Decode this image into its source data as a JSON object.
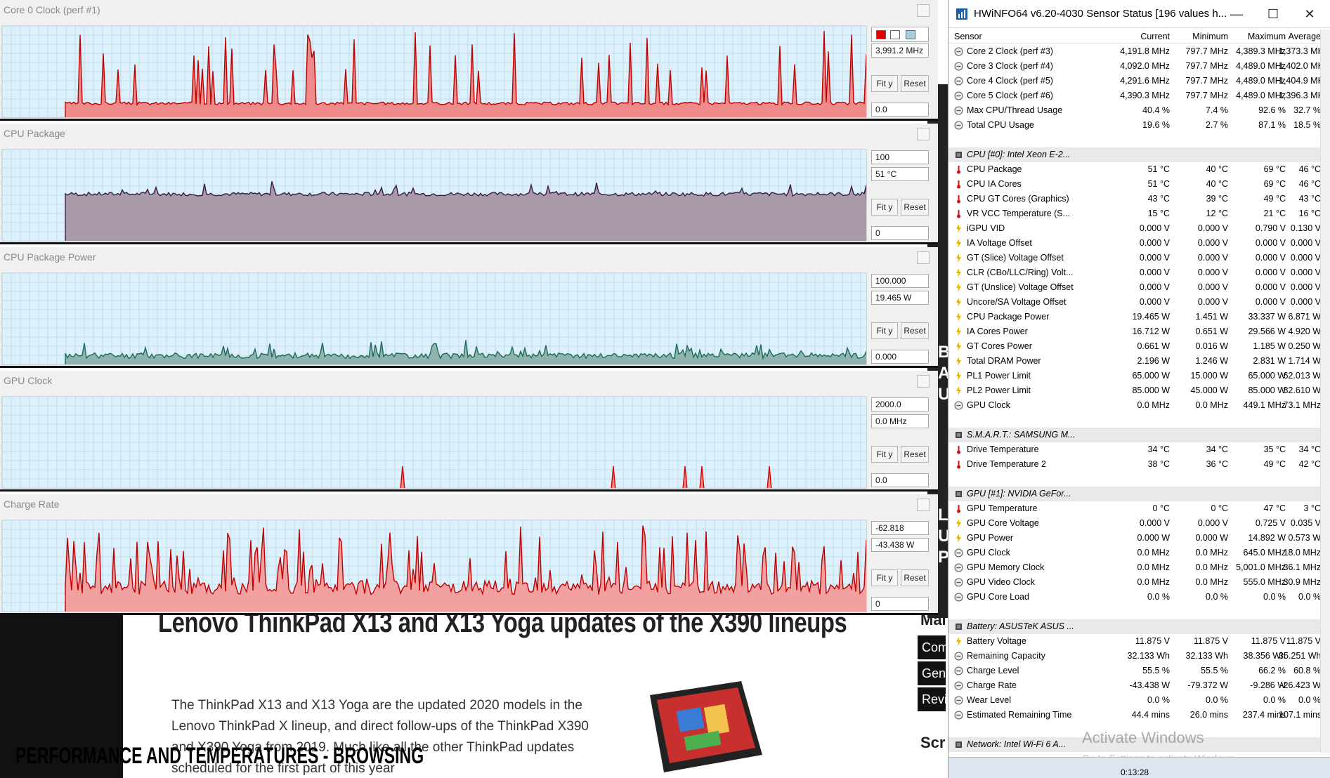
{
  "webpage": {
    "article_title": "Lenovo ThinkPad X13 and X13 Yoga updates of the X390 lineups",
    "article_body": "The ThinkPad X13 and X13 Yoga are the updated 2020 models in the Lenovo ThinkPad X lineup, and direct follow-ups of the ThinkPad X390 and X390 Yoga from 2019. Much like all the other ThinkPad updates scheduled for the first part of this year",
    "overlay_title": "PERFORMANCE AND TEMPERATURES - BROWSING",
    "sidebar_letters": [
      "B",
      "A",
      "U",
      "L",
      "U",
      "P"
    ],
    "sidebar_head": "Mai",
    "sidebar_buttons": [
      "Com",
      "Gen",
      "Revi"
    ],
    "sidebar_head2": "Scr"
  },
  "graphs": [
    {
      "title": "Core 0 Clock (perf #1)",
      "max_value": "",
      "current_value": "3,991.2 MHz",
      "min_value": "0.0",
      "fit_label": "Fit y",
      "reset_label": "Reset",
      "has_colors": true,
      "color": "#ee8a8a",
      "line_color": "#c00000",
      "style": "spikes",
      "baseline": 0.15,
      "seed": 3
    },
    {
      "title": "CPU Package",
      "max_value": "100",
      "current_value": "51 °C",
      "min_value": "0",
      "fit_label": "Fit y",
      "reset_label": "Reset",
      "has_colors": false,
      "color": "#a89aa8",
      "line_color": "#3a1a4a",
      "style": "plateau",
      "baseline": 0.5,
      "seed": 7
    },
    {
      "title": "CPU Package Power",
      "max_value": "100.000",
      "current_value": "19.465 W",
      "min_value": "0.000",
      "fit_label": "Fit y",
      "reset_label": "Reset",
      "has_colors": false,
      "color": "#8fb3ad",
      "line_color": "#1e6a5a",
      "style": "noise",
      "baseline": 0.08,
      "seed": 11
    },
    {
      "title": "GPU Clock",
      "max_value": "2000.0",
      "current_value": "0.0 MHz",
      "min_value": "0.0",
      "fit_label": "Fit y",
      "reset_label": "Reset",
      "has_colors": false,
      "color": "#ee8a8a",
      "line_color": "#d00000",
      "style": "sparse",
      "baseline": 0.0,
      "seed": 5
    },
    {
      "title": "Charge Rate",
      "max_value": "-62.818",
      "current_value": "-43.438 W",
      "min_value": "0",
      "fit_label": "Fit y",
      "reset_label": "Reset",
      "has_colors": false,
      "color": "#f2a0a0",
      "line_color": "#c00000",
      "style": "dense",
      "baseline": 0.2,
      "seed": 13
    }
  ],
  "hwinfo": {
    "title": "HWiNFO64 v6.20-4030 Sensor Status [196 values h...",
    "controls": {
      "minimize": "—",
      "maximize": "☐",
      "close": "✕"
    },
    "columns": [
      "Sensor",
      "Current",
      "Minimum",
      "Maximum",
      "Average"
    ],
    "rows": [
      {
        "type": "clock",
        "name": "Core 2 Clock (perf #3)",
        "cur": "4,191.8 MHz",
        "min": "797.7 MHz",
        "max": "4,389.3 MHz",
        "avg": "1,373.3 MHz"
      },
      {
        "type": "clock",
        "name": "Core 3 Clock (perf #4)",
        "cur": "4,092.0 MHz",
        "min": "797.7 MHz",
        "max": "4,489.0 MHz",
        "avg": "1,402.0 MHz"
      },
      {
        "type": "clock",
        "name": "Core 4 Clock (perf #5)",
        "cur": "4,291.6 MHz",
        "min": "797.7 MHz",
        "max": "4,489.0 MHz",
        "avg": "1,404.9 MHz"
      },
      {
        "type": "clock",
        "name": "Core 5 Clock (perf #6)",
        "cur": "4,390.3 MHz",
        "min": "797.7 MHz",
        "max": "4,489.0 MHz",
        "avg": "1,396.3 MHz"
      },
      {
        "type": "clock",
        "name": "Max CPU/Thread Usage",
        "cur": "40.4 %",
        "min": "7.4 %",
        "max": "92.6 %",
        "avg": "32.7 %"
      },
      {
        "type": "clock",
        "name": "Total CPU Usage",
        "cur": "19.6 %",
        "min": "2.7 %",
        "max": "87.1 %",
        "avg": "18.5 %"
      },
      {
        "type": "blank"
      },
      {
        "type": "group",
        "name": "CPU [#0]: Intel Xeon E-2..."
      },
      {
        "type": "temp",
        "name": "CPU Package",
        "cur": "51 °C",
        "min": "40 °C",
        "max": "69 °C",
        "avg": "46 °C"
      },
      {
        "type": "temp",
        "name": "CPU IA Cores",
        "cur": "51 °C",
        "min": "40 °C",
        "max": "69 °C",
        "avg": "46 °C"
      },
      {
        "type": "temp",
        "name": "CPU GT Cores (Graphics)",
        "cur": "43 °C",
        "min": "39 °C",
        "max": "49 °C",
        "avg": "43 °C"
      },
      {
        "type": "temp",
        "name": "VR VCC Temperature (S...",
        "cur": "15 °C",
        "min": "12 °C",
        "max": "21 °C",
        "avg": "16 °C"
      },
      {
        "type": "volt",
        "name": "iGPU VID",
        "cur": "0.000 V",
        "min": "0.000 V",
        "max": "0.790 V",
        "avg": "0.130 V"
      },
      {
        "type": "volt",
        "name": "IA Voltage Offset",
        "cur": "0.000 V",
        "min": "0.000 V",
        "max": "0.000 V",
        "avg": "0.000 V"
      },
      {
        "type": "volt",
        "name": "GT (Slice) Voltage Offset",
        "cur": "0.000 V",
        "min": "0.000 V",
        "max": "0.000 V",
        "avg": "0.000 V"
      },
      {
        "type": "volt",
        "name": "CLR (CBo/LLC/Ring) Volt...",
        "cur": "0.000 V",
        "min": "0.000 V",
        "max": "0.000 V",
        "avg": "0.000 V"
      },
      {
        "type": "volt",
        "name": "GT (Unslice) Voltage Offset",
        "cur": "0.000 V",
        "min": "0.000 V",
        "max": "0.000 V",
        "avg": "0.000 V"
      },
      {
        "type": "volt",
        "name": "Uncore/SA Voltage Offset",
        "cur": "0.000 V",
        "min": "0.000 V",
        "max": "0.000 V",
        "avg": "0.000 V"
      },
      {
        "type": "volt",
        "name": "CPU Package Power",
        "cur": "19.465 W",
        "min": "1.451 W",
        "max": "33.337 W",
        "avg": "6.871 W"
      },
      {
        "type": "volt",
        "name": "IA Cores Power",
        "cur": "16.712 W",
        "min": "0.651 W",
        "max": "29.566 W",
        "avg": "4.920 W"
      },
      {
        "type": "volt",
        "name": "GT Cores Power",
        "cur": "0.661 W",
        "min": "0.016 W",
        "max": "1.185 W",
        "avg": "0.250 W"
      },
      {
        "type": "volt",
        "name": "Total DRAM Power",
        "cur": "2.196 W",
        "min": "1.246 W",
        "max": "2.831 W",
        "avg": "1.714 W"
      },
      {
        "type": "volt",
        "name": "PL1 Power Limit",
        "cur": "65.000 W",
        "min": "15.000 W",
        "max": "65.000 W",
        "avg": "62.013 W"
      },
      {
        "type": "volt",
        "name": "PL2 Power Limit",
        "cur": "85.000 W",
        "min": "45.000 W",
        "max": "85.000 W",
        "avg": "82.610 W"
      },
      {
        "type": "clock",
        "name": "GPU Clock",
        "cur": "0.0 MHz",
        "min": "0.0 MHz",
        "max": "449.1 MHz",
        "avg": "73.1 MHz"
      },
      {
        "type": "blank"
      },
      {
        "type": "group",
        "name": "S.M.A.R.T.: SAMSUNG M..."
      },
      {
        "type": "temp",
        "name": "Drive Temperature",
        "cur": "34 °C",
        "min": "34 °C",
        "max": "35 °C",
        "avg": "34 °C"
      },
      {
        "type": "temp",
        "name": "Drive Temperature 2",
        "cur": "38 °C",
        "min": "36 °C",
        "max": "49 °C",
        "avg": "42 °C"
      },
      {
        "type": "blank"
      },
      {
        "type": "group",
        "name": "GPU [#1]: NVIDIA GeFor..."
      },
      {
        "type": "temp",
        "name": "GPU Temperature",
        "cur": "0 °C",
        "min": "0 °C",
        "max": "47 °C",
        "avg": "3 °C"
      },
      {
        "type": "volt",
        "name": "GPU Core Voltage",
        "cur": "0.000 V",
        "min": "0.000 V",
        "max": "0.725 V",
        "avg": "0.035 V"
      },
      {
        "type": "volt",
        "name": "GPU Power",
        "cur": "0.000 W",
        "min": "0.000 W",
        "max": "14.892 W",
        "avg": "0.573 W"
      },
      {
        "type": "clock",
        "name": "GPU Clock",
        "cur": "0.0 MHz",
        "min": "0.0 MHz",
        "max": "645.0 MHz",
        "avg": "18.0 MHz"
      },
      {
        "type": "clock",
        "name": "GPU Memory Clock",
        "cur": "0.0 MHz",
        "min": "0.0 MHz",
        "max": "5,001.0 MHz",
        "avg": "36.1 MHz"
      },
      {
        "type": "clock",
        "name": "GPU Video Clock",
        "cur": "0.0 MHz",
        "min": "0.0 MHz",
        "max": "555.0 MHz",
        "avg": "30.9 MHz"
      },
      {
        "type": "clock",
        "name": "GPU Core Load",
        "cur": "0.0 %",
        "min": "0.0 %",
        "max": "0.0 %",
        "avg": "0.0 %"
      },
      {
        "type": "blank"
      },
      {
        "type": "group",
        "name": "Battery: ASUSTeK ASUS ..."
      },
      {
        "type": "volt",
        "name": "Battery Voltage",
        "cur": "11.875 V",
        "min": "11.875 V",
        "max": "11.875 V",
        "avg": "11.875 V"
      },
      {
        "type": "clock",
        "name": "Remaining Capacity",
        "cur": "32.133 Wh",
        "min": "32.133 Wh",
        "max": "38.356 Wh",
        "avg": "35.251 Wh"
      },
      {
        "type": "clock",
        "name": "Charge Level",
        "cur": "55.5 %",
        "min": "55.5 %",
        "max": "66.2 %",
        "avg": "60.8 %"
      },
      {
        "type": "clock",
        "name": "Charge Rate",
        "cur": "-43.438 W",
        "min": "-79.372 W",
        "max": "-9.286 W",
        "avg": "-26.423 W"
      },
      {
        "type": "clock",
        "name": "Wear Level",
        "cur": "0.0 %",
        "min": "0.0 %",
        "max": "0.0 %",
        "avg": "0.0 %"
      },
      {
        "type": "clock",
        "name": "Estimated Remaining Time",
        "cur": "44.4 mins",
        "min": "26.0 mins",
        "max": "237.4 mins",
        "avg": "107.1 mins"
      },
      {
        "type": "blank"
      },
      {
        "type": "group",
        "name": "Network: Intel Wi-Fi 6 A..."
      }
    ],
    "watermark_line1": "Activate Windows",
    "watermark_line2": "Go to Settings to activate Windows.",
    "timer": "0:13:28"
  }
}
